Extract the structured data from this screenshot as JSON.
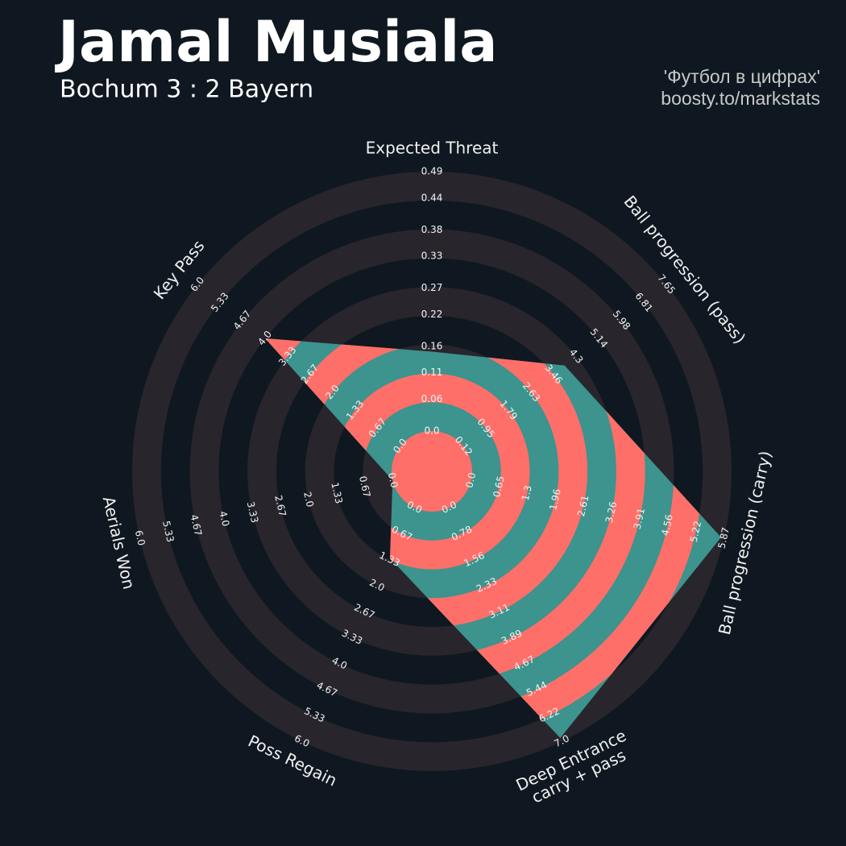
{
  "chart_data": {
    "type": "radar",
    "title": "Jamal Musiala",
    "subtitle": "Bochum 3 : 2 Bayern",
    "credits": [
      "'Футбол в цифрах'",
      "boosty.to/markstats"
    ],
    "params": [
      "Expected Threat",
      "Ball progression (pass)",
      "Ball progression (carry)",
      "Deep Entrance\ncarry + pass",
      "Poss Regain",
      "Aerials Won",
      "Key Pass"
    ],
    "values": [
      0.15,
      3.88,
      5.8,
      6.9,
      1.3,
      0,
      4
    ],
    "ranges": [
      [
        0,
        0.49
      ],
      [
        0.12,
        7.65
      ],
      [
        0,
        5.87
      ],
      [
        0,
        7
      ],
      [
        0,
        6
      ],
      [
        0,
        6
      ],
      [
        0,
        6
      ]
    ],
    "ticks": [
      [
        {
          "value": 0,
          "label": "0.0"
        },
        0.06,
        0.11,
        0.16,
        0.22,
        0.27,
        0.33,
        0.38,
        0.44,
        0.49
      ],
      [
        0.12,
        0.95,
        1.79,
        2.63,
        3.46,
        4.3,
        5.14,
        5.98,
        6.81,
        7.65
      ],
      [
        {
          "value": 0,
          "label": "0.0"
        },
        0.65,
        1.3,
        1.96,
        2.61,
        3.26,
        3.91,
        4.56,
        5.22,
        5.87
      ],
      [
        {
          "value": 0,
          "label": "0.0"
        },
        0.78,
        1.56,
        2.33,
        3.11,
        3.89,
        4.67,
        5.44,
        6.22,
        {
          "value": 7,
          "label": "7.0"
        }
      ],
      [
        {
          "value": 0,
          "label": "0.0"
        },
        0.67,
        1.33,
        {
          "value": 2,
          "label": "2.0"
        },
        2.67,
        3.33,
        {
          "value": 4,
          "label": "4.0"
        },
        4.67,
        5.33,
        {
          "value": 6,
          "label": "6.0"
        }
      ],
      [
        {
          "value": 0,
          "label": "0.0"
        },
        0.67,
        1.33,
        {
          "value": 2,
          "label": "2.0"
        },
        2.67,
        3.33,
        {
          "value": 4,
          "label": "4.0"
        },
        4.67,
        5.33,
        {
          "value": 6,
          "label": "6.0"
        }
      ],
      [
        {
          "value": 0,
          "label": "0.0"
        },
        0.67,
        1.33,
        {
          "value": 2,
          "label": "2.0"
        },
        2.67,
        3.33,
        {
          "value": 4,
          "label": "4.0"
        },
        4.67,
        5.33,
        {
          "value": 6,
          "label": "6.0"
        }
      ]
    ],
    "color": "#3d938d",
    "ring_color": "#ff6f69"
  }
}
